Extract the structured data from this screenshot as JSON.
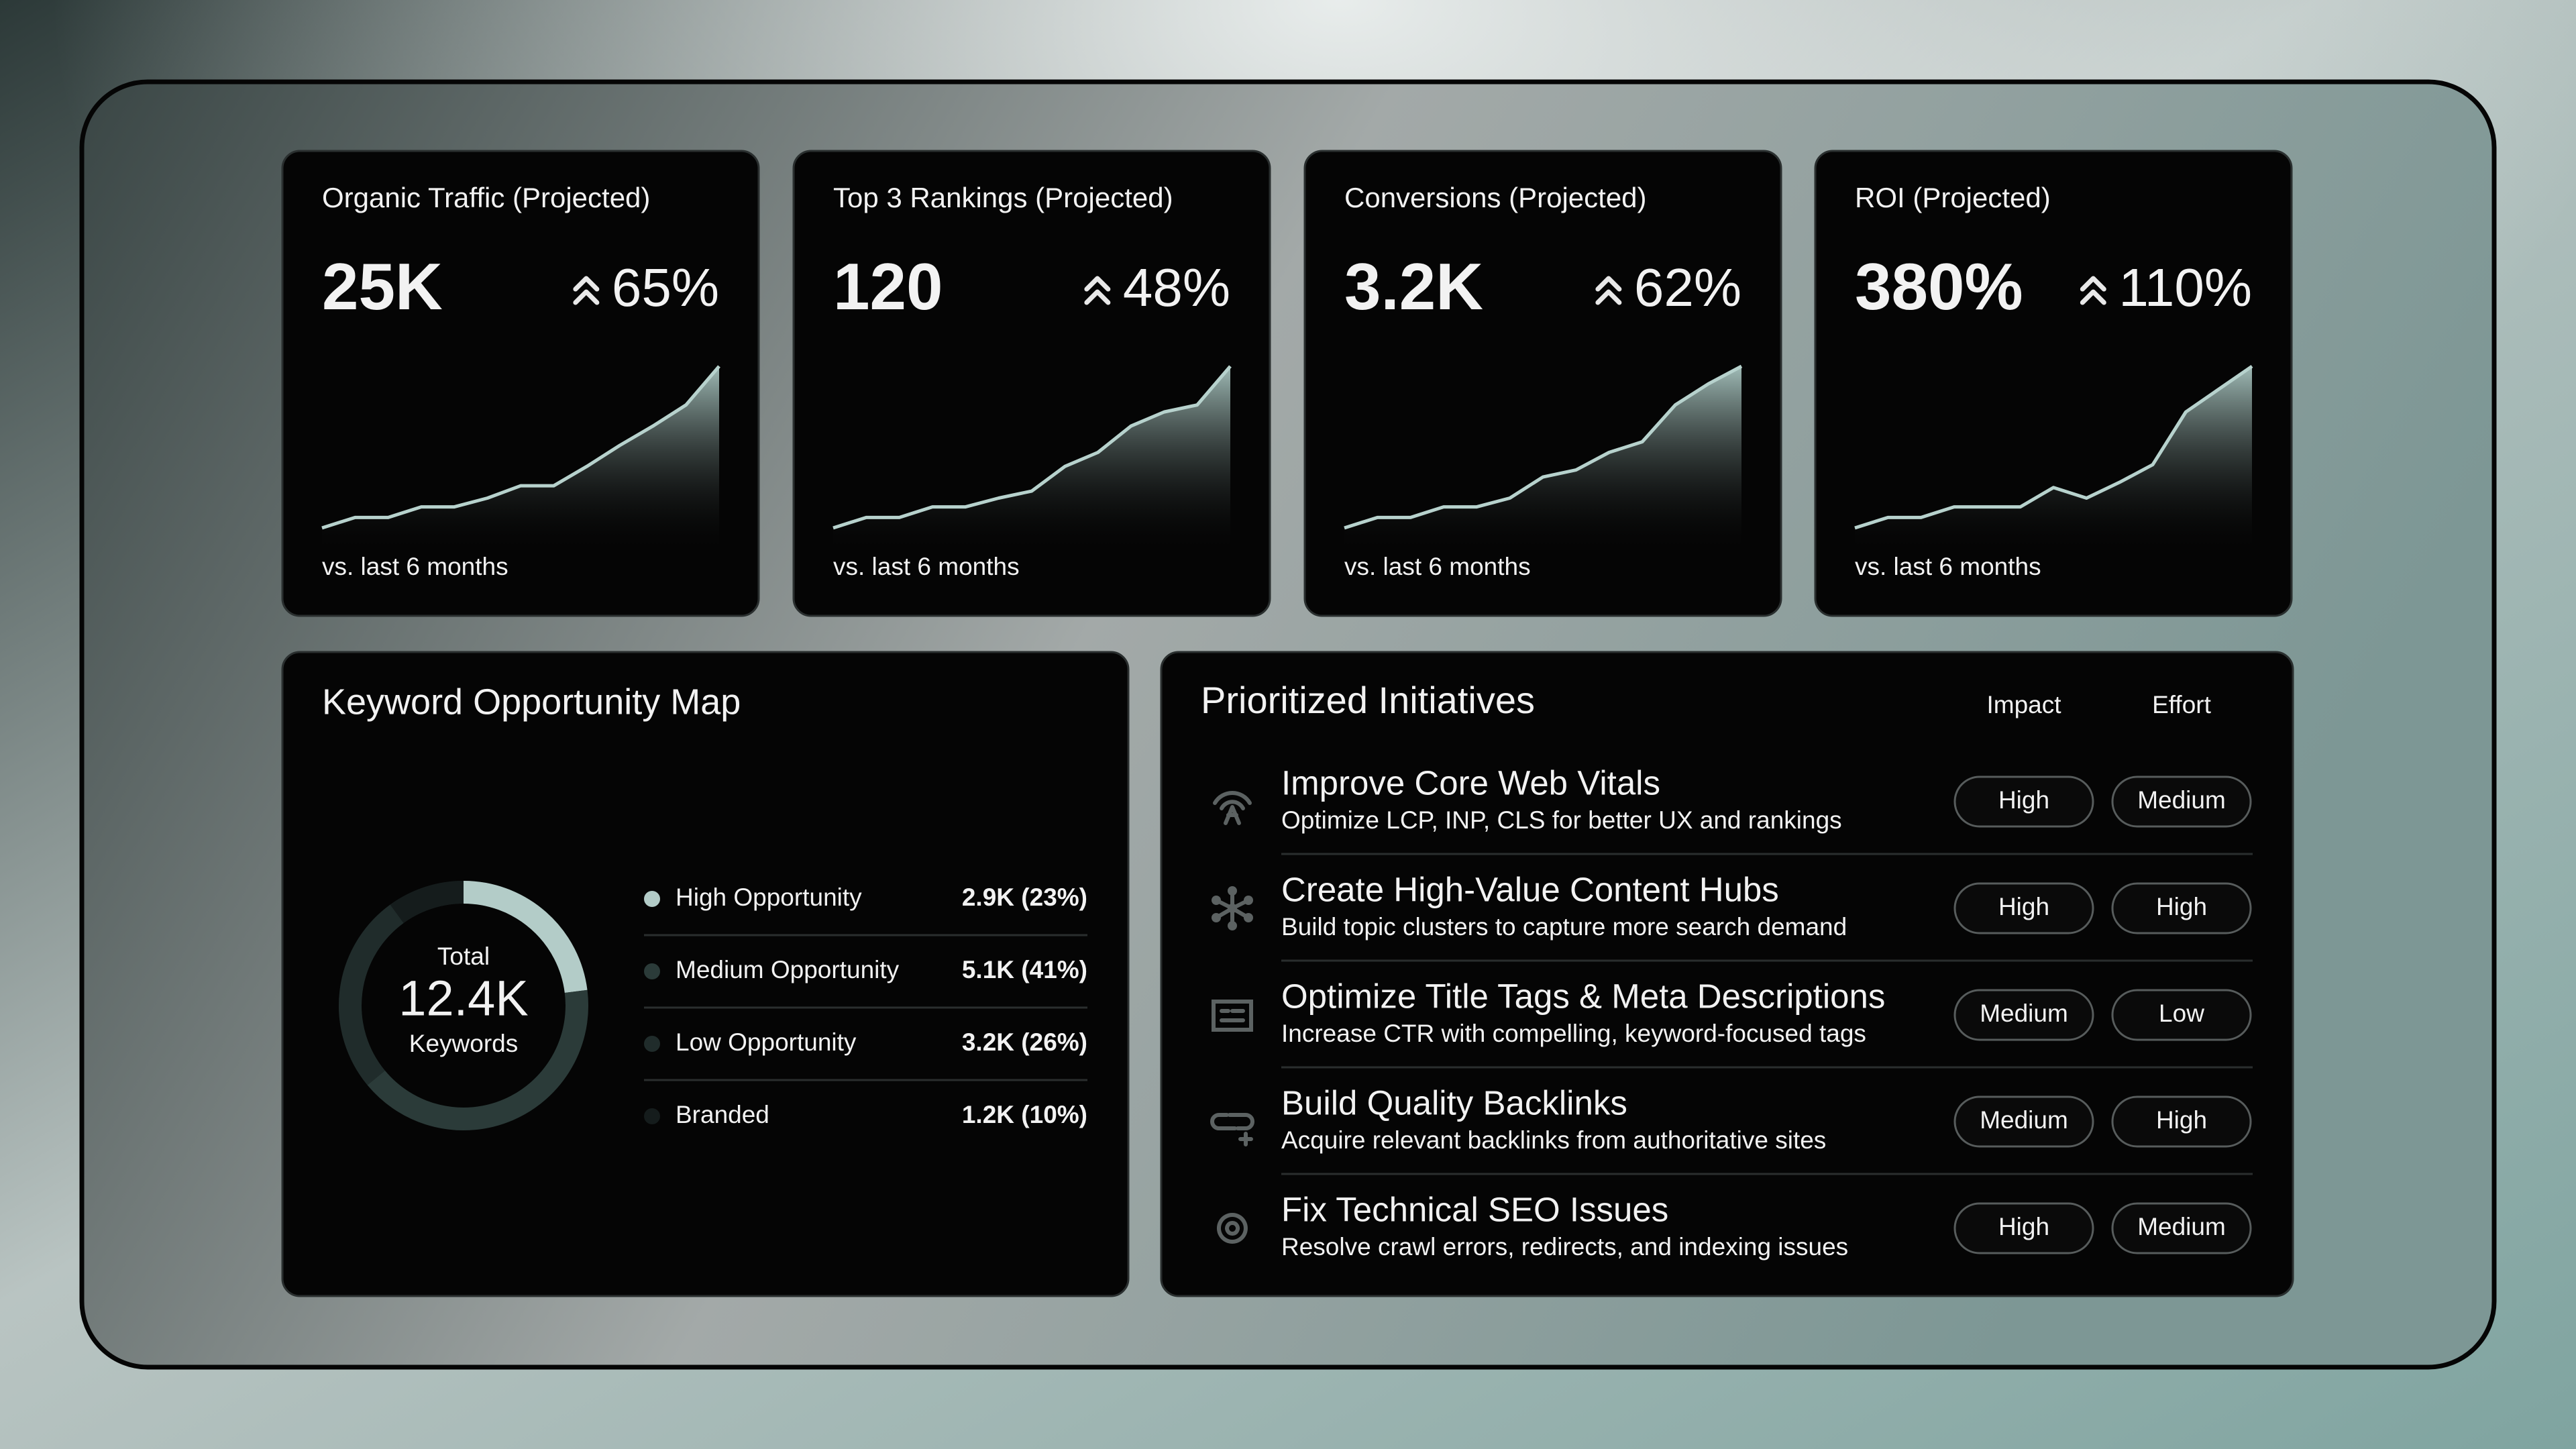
{
  "kpis": [
    {
      "title": "Organic Traffic (Projected)",
      "value": "25K",
      "change": "65%",
      "footer": "vs. last 6 months",
      "trend": [
        8,
        14,
        14,
        20,
        20,
        25,
        32,
        32,
        43,
        55,
        66,
        78,
        100
      ]
    },
    {
      "title": "Top 3 Rankings (Projected)",
      "value": "120",
      "change": "48%",
      "footer": "vs. last 6 months",
      "trend": [
        8,
        14,
        14,
        20,
        20,
        25,
        29,
        43,
        51,
        66,
        74,
        78,
        100
      ]
    },
    {
      "title": "Conversions  (Projected)",
      "value": "3.2K",
      "change": "62%",
      "footer": "vs. last 6 months",
      "trend": [
        8,
        14,
        14,
        20,
        20,
        25,
        37,
        41,
        51,
        57,
        78,
        90,
        100
      ]
    },
    {
      "title": "ROI (Projected)",
      "value": "380%",
      "change": "110%",
      "footer": "vs. last 6 months",
      "trend": [
        8,
        14,
        14,
        20,
        20,
        20,
        31,
        25,
        34,
        44,
        74,
        87,
        100
      ]
    }
  ],
  "keywords": {
    "title": "Keyword Opportunity Map",
    "total_label": "Total",
    "total": "12.4K",
    "total_unit": "Keywords",
    "segments": [
      {
        "name": "High Opportunity",
        "value_label": "2.9K (23%)",
        "percent": 23,
        "color": "#b3ccc8"
      },
      {
        "name": "Medium Opportunity",
        "value_label": "5.1K (41%)",
        "percent": 41,
        "color": "#2b3b39"
      },
      {
        "name": "Low Opportunity",
        "value_label": "3.2K (26%)",
        "percent": 26,
        "color": "#202c2b"
      },
      {
        "name": "Branded",
        "value_label": "1.2K (10%)",
        "percent": 10,
        "color": "#151c1c"
      }
    ]
  },
  "initiatives": {
    "title": "Prioritized Initiatives",
    "columns": [
      "Impact",
      "Effort"
    ],
    "rows": [
      {
        "title": "Improve Core Web Vitals",
        "description": "Optimize LCP, INP, CLS for better UX and rankings",
        "impact": "High",
        "effort": "Medium"
      },
      {
        "title": "Create High-Value Content Hubs",
        "description": "Build topic clusters to capture more search demand",
        "impact": "High",
        "effort": "High"
      },
      {
        "title": "Optimize Title Tags & Meta Descriptions",
        "description": "Increase CTR with compelling, keyword-focused tags",
        "impact": "Medium",
        "effort": "Low"
      },
      {
        "title": "Build Quality Backlinks",
        "description": "Acquire relevant backlinks from authoritative sites",
        "impact": "Medium",
        "effort": "High"
      },
      {
        "title": "Fix Technical SEO Issues",
        "description": "Resolve crawl errors, redirects, and indexing issues",
        "impact": "High",
        "effort": "Medium"
      }
    ]
  }
}
